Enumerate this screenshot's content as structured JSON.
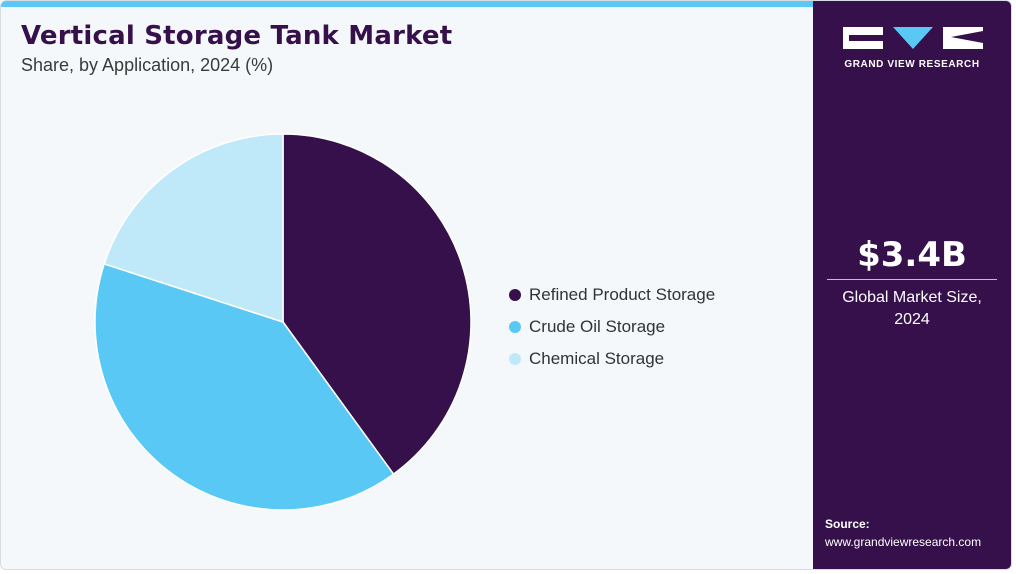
{
  "header": {
    "title": "Vertical Storage Tank Market",
    "subtitle": "Share, by Application, 2024 (%)"
  },
  "chart_data": {
    "type": "pie",
    "title": "Vertical Storage Tank Market",
    "subtitle": "Share, by Application, 2024 (%)",
    "categories": [
      "Refined Product Storage",
      "Crude Oil Storage",
      "Chemical Storage"
    ],
    "values": [
      40,
      40,
      20
    ],
    "colors": [
      "#35104a",
      "#5ac8f5",
      "#bfe8f9"
    ],
    "legend_position": "right"
  },
  "sidebar": {
    "logo_text": "GRAND VIEW RESEARCH",
    "market_value": "$3.4B",
    "market_label_line1": "Global Market Size,",
    "market_label_line2": "2024",
    "source_label": "Source:",
    "source_url": "www.grandviewresearch.com"
  },
  "colors": {
    "accent": "#35104a",
    "top_bar": "#5ac8f5",
    "background": "#f4f8fb"
  }
}
